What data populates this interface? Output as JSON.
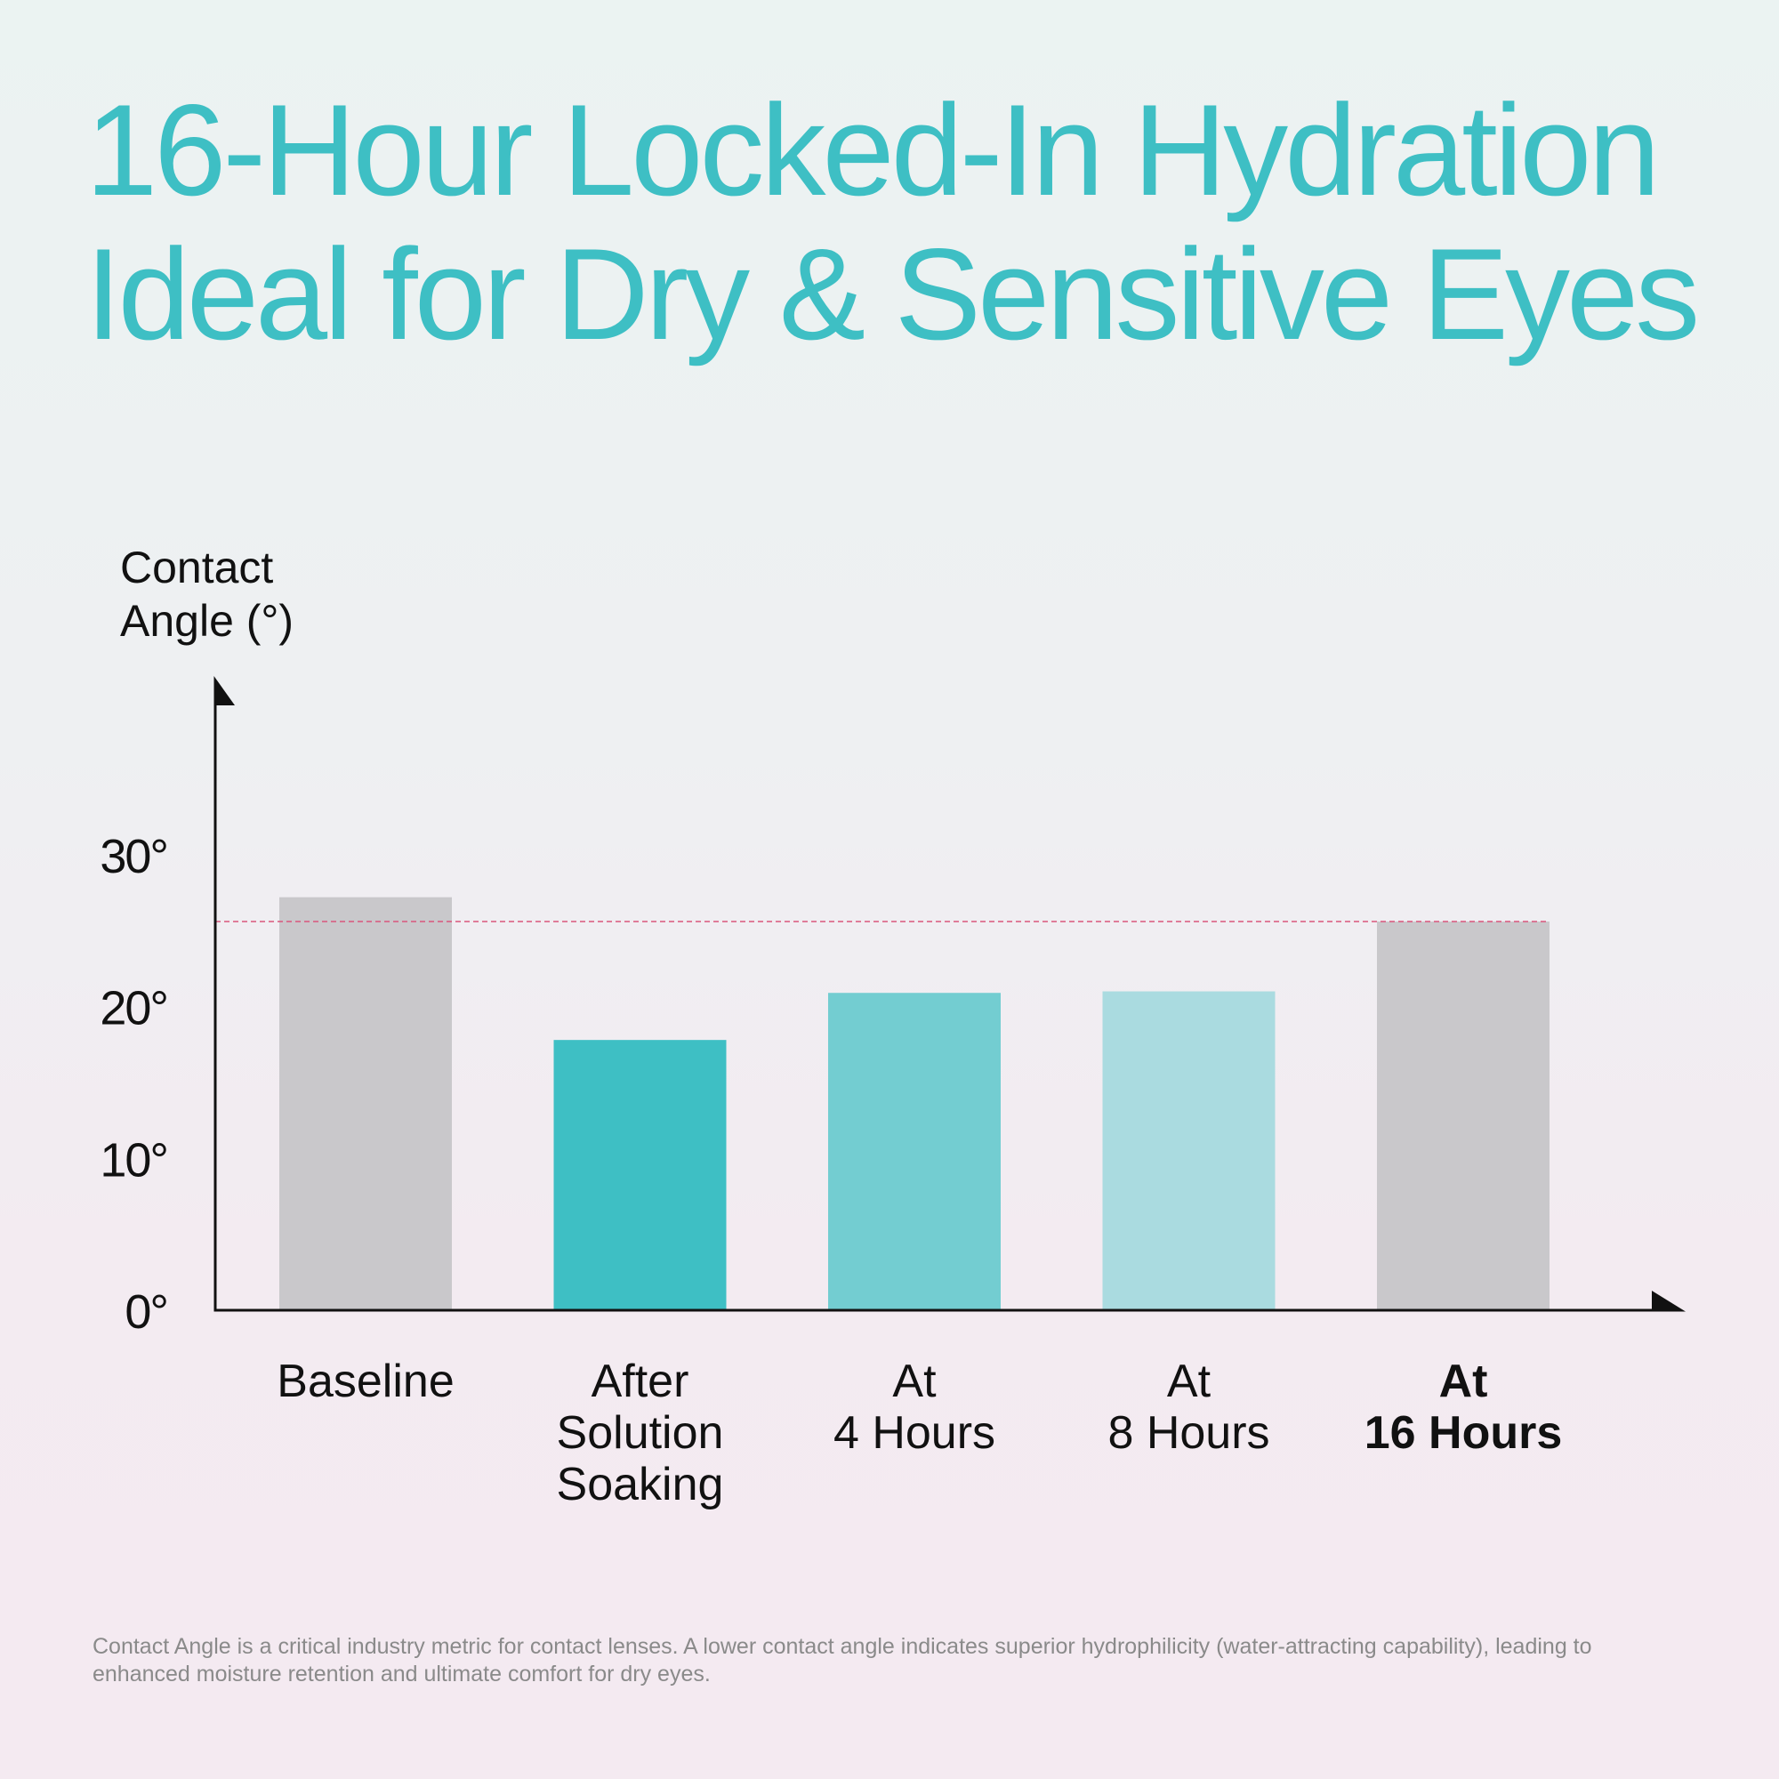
{
  "headline": {
    "line1": "16-Hour Locked-In Hydration",
    "line2": "Ideal for Dry & Sensitive Eyes",
    "color": "#3ebfc4"
  },
  "chart_data": {
    "type": "bar",
    "ylabel_lines": [
      "Contact",
      "Angle (°)"
    ],
    "categories": [
      {
        "lines": [
          "Baseline"
        ],
        "bold": false
      },
      {
        "lines": [
          "After",
          "Solution",
          "Soaking"
        ],
        "bold": false
      },
      {
        "lines": [
          "At",
          "4 Hours"
        ],
        "bold": false
      },
      {
        "lines": [
          "At",
          "8 Hours"
        ],
        "bold": false
      },
      {
        "lines": [
          "At",
          "16 Hours"
        ],
        "bold": true
      }
    ],
    "values": [
      27.2,
      17.8,
      20.9,
      21.0,
      25.6
    ],
    "bar_colors": [
      "#c9c8cb",
      "#3ebfc4",
      "#73cdd1",
      "#aadbe0",
      "#c9c8cb"
    ],
    "reference_line": {
      "value": 25.6,
      "color": "#d9567c",
      "style": "dashed"
    },
    "yticks": [
      "0°",
      "10°",
      "20°",
      "30°"
    ],
    "ylim": [
      0,
      30
    ],
    "grid": false,
    "axis_color": "#111111"
  },
  "footnote": "Contact Angle is a critical industry metric for contact lenses. A lower contact angle indicates superior hydrophilicity (water-attracting capability), leading to enhanced moisture retention and ultimate comfort for dry eyes."
}
